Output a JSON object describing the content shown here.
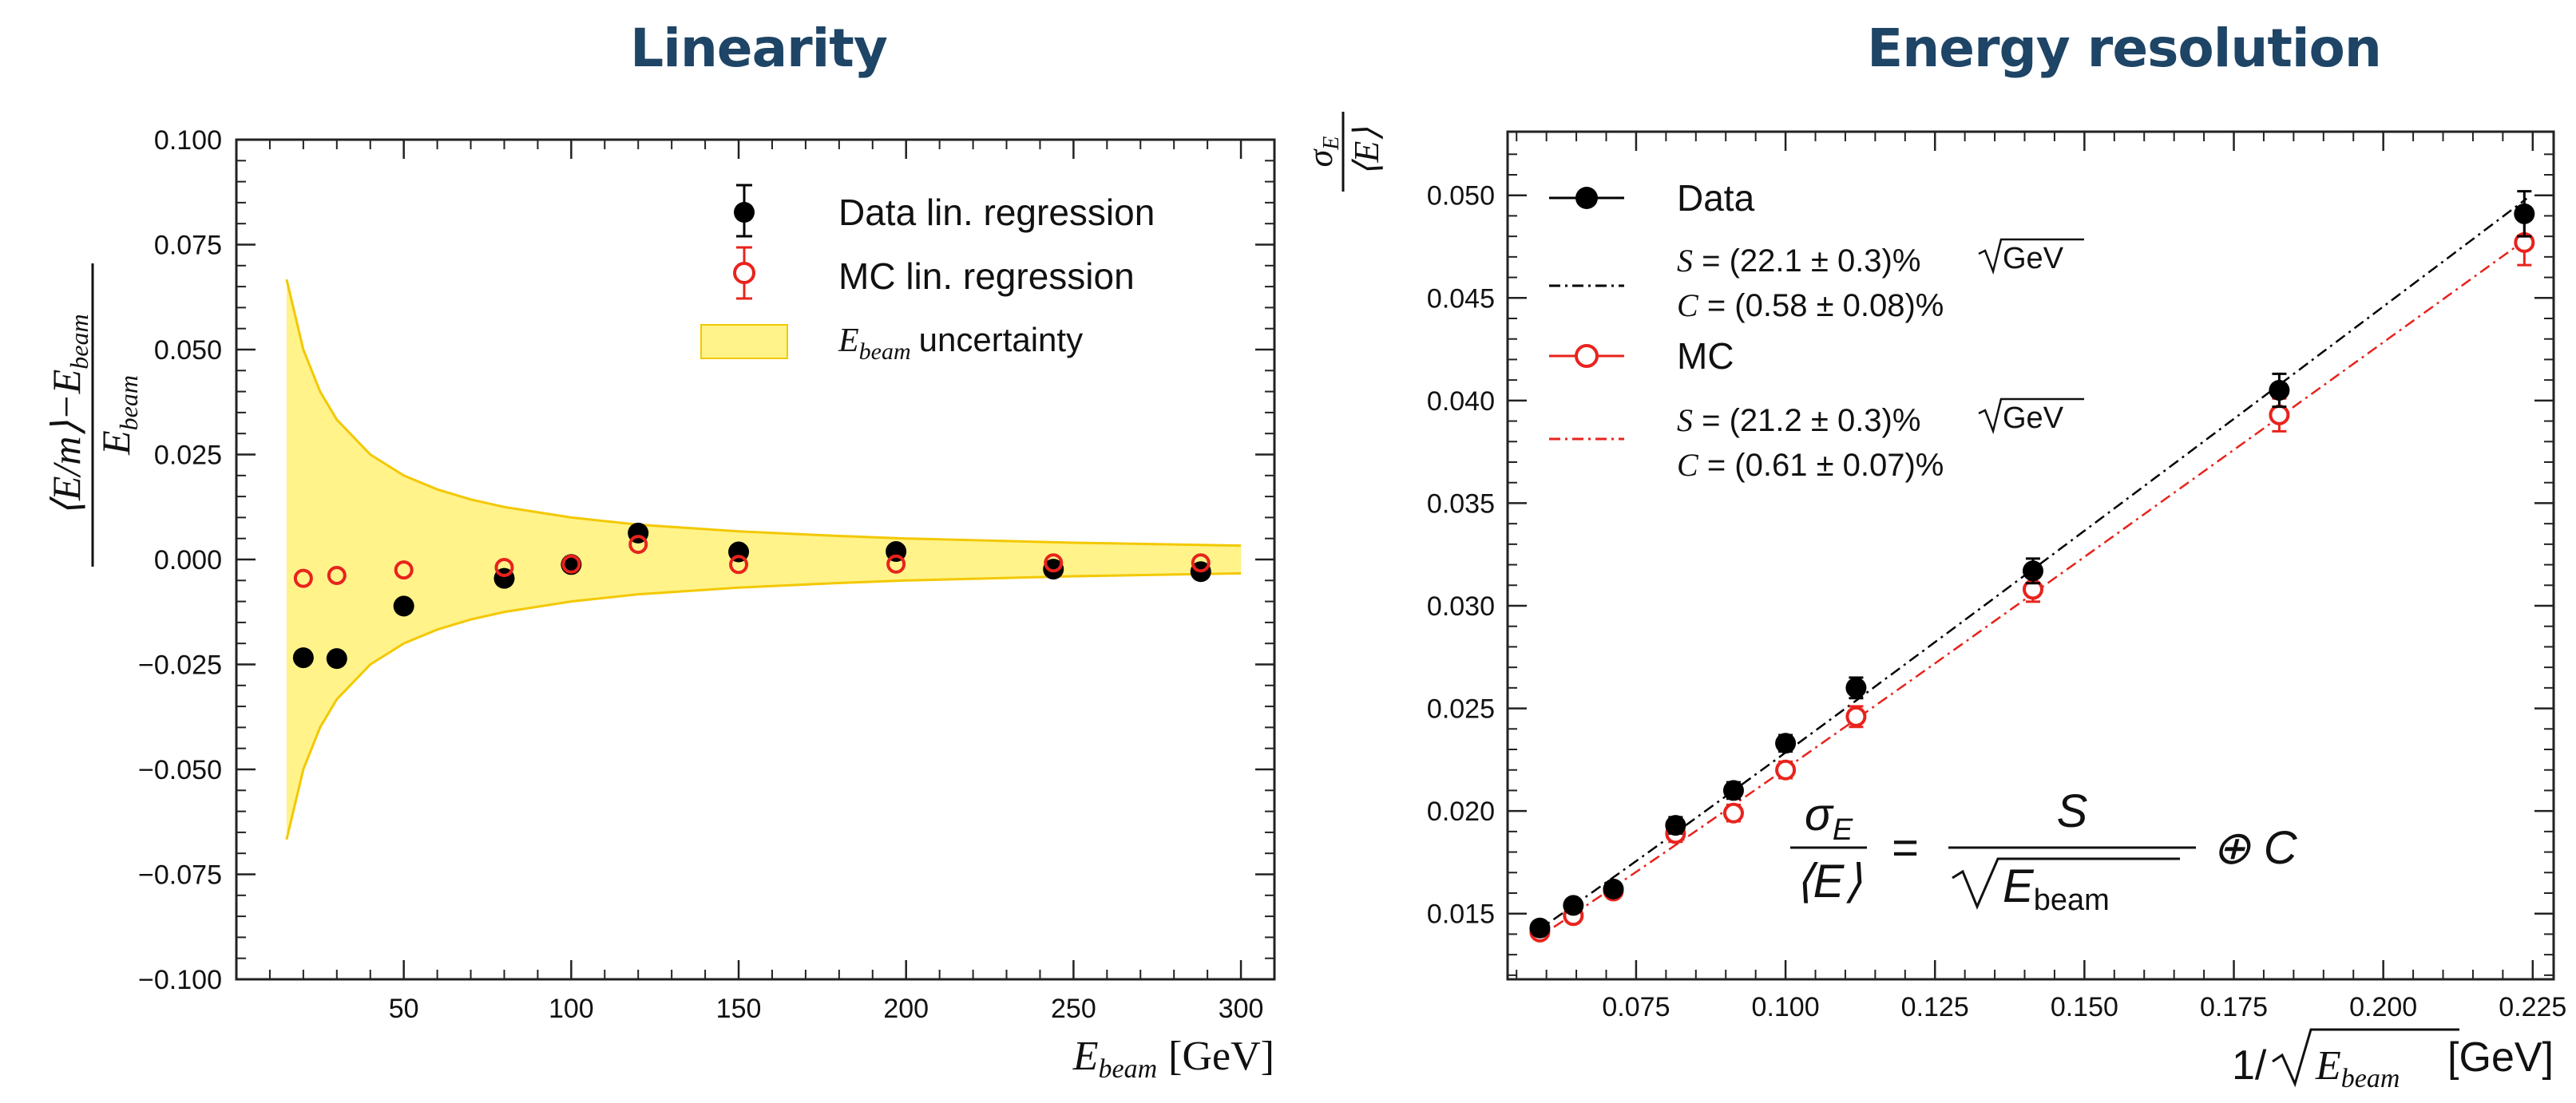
{
  "titles": {
    "left": "Linearity",
    "right": "Energy resolution"
  },
  "chart_data": [
    {
      "type": "scatter",
      "title": "Linearity",
      "xlabel": "E_beam [GeV]",
      "ylabel": "(<E/m> - E_beam) / E_beam",
      "xlim": [
        0,
        310
      ],
      "ylim": [
        -0.1,
        0.1
      ],
      "xticks": [
        "50",
        "100",
        "150",
        "200",
        "250",
        "300"
      ],
      "xtick_values": [
        50,
        100,
        150,
        200,
        250,
        300
      ],
      "yticks": [
        "0.100",
        "0.075",
        "0.050",
        "0.025",
        "0.000",
        "−0.025",
        "−0.050",
        "−0.075",
        "−0.100"
      ],
      "ytick_values": [
        0.1,
        0.075,
        0.05,
        0.025,
        0,
        -0.025,
        -0.05,
        -0.075,
        -0.1
      ],
      "band": {
        "name": "E_beam uncertainty",
        "x": [
          15,
          20,
          25,
          30,
          40,
          50,
          60,
          70,
          80,
          100,
          120,
          150,
          180,
          200,
          250,
          300
        ],
        "halfwidth": [
          0.0667,
          0.05,
          0.04,
          0.0333,
          0.025,
          0.02,
          0.0167,
          0.0143,
          0.0125,
          0.01,
          0.0083,
          0.0067,
          0.0056,
          0.005,
          0.004,
          0.0033
        ],
        "color": "#fff38a",
        "edge_color": "#f3c800"
      },
      "series": [
        {
          "name": "Data lin. regression",
          "marker": "filled-circle",
          "color": "#000000",
          "x": [
            20,
            30,
            50,
            80,
            100,
            120,
            150,
            197,
            244,
            288
          ],
          "y": [
            -0.0234,
            -0.0236,
            -0.0111,
            -0.0045,
            -0.0012,
            0.0063,
            0.0018,
            0.0019,
            -0.0023,
            -0.0029
          ]
        },
        {
          "name": "MC lin. regression",
          "marker": "open-circle",
          "color": "#e8231c",
          "x": [
            20,
            30,
            50,
            80,
            100,
            120,
            150,
            197,
            244,
            288
          ],
          "y": [
            -0.0045,
            -0.0038,
            -0.0025,
            -0.0019,
            -0.0011,
            0.0036,
            -0.0012,
            -0.0011,
            -0.0008,
            -0.0008
          ]
        }
      ],
      "legend": {
        "data": "Data lin. regression",
        "mc": "MC lin. regression",
        "band_symbol": "E",
        "band_sub": "beam",
        "band_rest": "uncertainty"
      },
      "ylabel_parts": {
        "num": "⟨E/m⟩−E",
        "num_sub": "beam",
        "den": "E",
        "den_sub": "beam"
      },
      "xlabel_parts": {
        "sym": "E",
        "sub": "beam",
        "unit": "[GeV]"
      }
    },
    {
      "type": "scatter",
      "title": "Energy resolution",
      "xlabel": "1/sqrt(E_beam) [GeV]",
      "ylabel": "sigma_E / <E>",
      "xlim": [
        0.0535,
        0.2285
      ],
      "ylim": [
        0.0118,
        0.0531
      ],
      "xticks": [
        "0.075",
        "0.100",
        "0.125",
        "0.150",
        "0.175",
        "0.200",
        "0.225"
      ],
      "xtick_values": [
        0.075,
        0.1,
        0.125,
        0.15,
        0.175,
        0.2,
        0.225
      ],
      "yticks": [
        "0.050",
        "0.045",
        "0.040",
        "0.035",
        "0.030",
        "0.025",
        "0.020",
        "0.015"
      ],
      "ytick_values": [
        0.05,
        0.045,
        0.04,
        0.035,
        0.03,
        0.025,
        0.02,
        0.015
      ],
      "series": [
        {
          "name": "Data",
          "marker": "filled-circle",
          "color": "#000000",
          "x": [
            0.0589,
            0.0645,
            0.0712,
            0.0816,
            0.0913,
            0.1,
            0.1118,
            0.1414,
            0.1826,
            0.2236
          ],
          "y": [
            0.0143,
            0.0154,
            0.0162,
            0.0193,
            0.021,
            0.0233,
            0.026,
            0.0317,
            0.0405,
            0.0491
          ],
          "yerr": [
            0.0003,
            0.0003,
            0.0003,
            0.0004,
            0.0004,
            0.0004,
            0.0005,
            0.0006,
            0.0008,
            0.0011
          ]
        },
        {
          "name": "MC",
          "marker": "open-circle",
          "color": "#e8231c",
          "x": [
            0.0589,
            0.0645,
            0.0712,
            0.0816,
            0.0913,
            0.1,
            0.1118,
            0.1414,
            0.1826,
            0.2236
          ],
          "y": [
            0.0141,
            0.0149,
            0.0161,
            0.0189,
            0.0199,
            0.022,
            0.0246,
            0.0308,
            0.0393,
            0.0477
          ],
          "yerr": [
            0.0003,
            0.0003,
            0.0003,
            0.0004,
            0.0004,
            0.0004,
            0.0005,
            0.0006,
            0.0008,
            0.0011
          ]
        }
      ],
      "fits": [
        {
          "name": "Data fit",
          "S_percent": 22.1,
          "C_percent": 0.58,
          "color": "#000000",
          "dash": "dash-dot"
        },
        {
          "name": "MC fit",
          "S_percent": 21.2,
          "C_percent": 0.61,
          "color": "#e8231c",
          "dash": "dash-dot"
        }
      ],
      "legend": {
        "data": "Data",
        "data_S": "= (22.1 ± 0.3)%",
        "data_C": "= (0.58 ± 0.08)%",
        "mc": "MC",
        "mc_S": "= (21.2 ± 0.3)%",
        "mc_C": "= (0.61 ± 0.07)%",
        "S_sym": "S",
        "C_sym": "C",
        "gev_root": "GeV"
      },
      "formula": {
        "lhs_num": "σ",
        "lhs_num_sub": "E",
        "lhs_den": "⟨E⟩",
        "eq": "=",
        "rhs_num": "S",
        "rhs_den": "E",
        "rhs_den_sub": "beam",
        "oplus": "⊕ C"
      },
      "ylabel_parts": {
        "num": "σ",
        "num_sub": "E",
        "den": "⟨E⟩"
      },
      "xlabel_parts": {
        "pre": "1/",
        "sym": "E",
        "sub": "beam",
        "unit": "[GeV]"
      }
    }
  ]
}
